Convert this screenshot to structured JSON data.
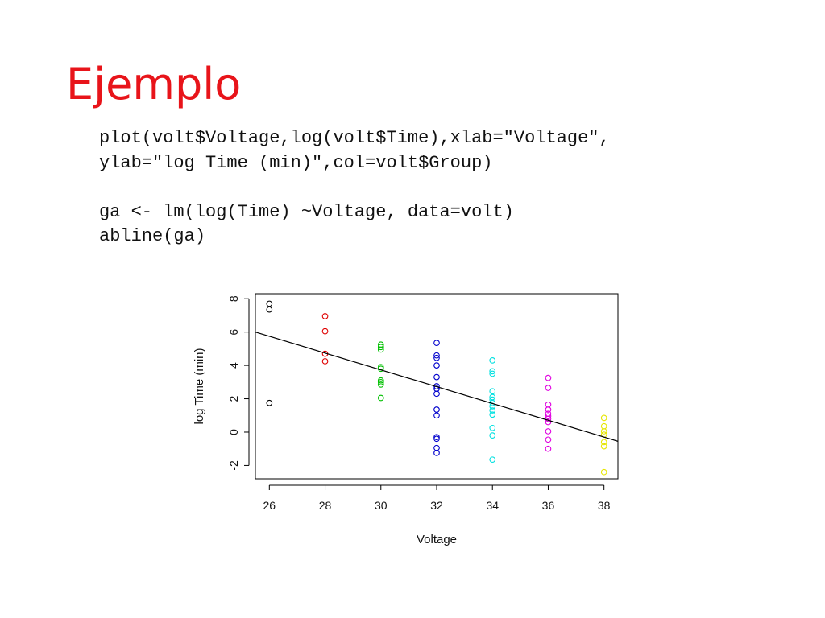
{
  "slide": {
    "title": "Ejemplo",
    "code_lines": [
      "plot(volt$Voltage,log(volt$Time),xlab=\"Voltage\",",
      "ylab=\"log Time (min)\",col=volt$Group)",
      "",
      "ga <- lm(log(Time) ~Voltage, data=volt)",
      "abline(ga)"
    ]
  },
  "chart_data": {
    "type": "scatter",
    "xlabel": "Voltage",
    "ylabel": "log Time (min)",
    "xticks": [
      26,
      28,
      30,
      32,
      34,
      36,
      38
    ],
    "yticks": [
      -2,
      0,
      2,
      4,
      6,
      8
    ],
    "xlim": [
      25.5,
      38.5
    ],
    "ylim": [
      -2.8,
      8.3
    ],
    "grid": false,
    "series": [
      {
        "color": "#000000",
        "points": [
          [
            26,
            7.7
          ],
          [
            26,
            7.35
          ],
          [
            26,
            1.75
          ]
        ]
      },
      {
        "color": "#df0000",
        "points": [
          [
            28,
            6.95
          ],
          [
            28,
            6.05
          ],
          [
            28,
            4.7
          ],
          [
            28,
            4.25
          ]
        ]
      },
      {
        "color": "#00c000",
        "points": [
          [
            30,
            5.25
          ],
          [
            30,
            5.1
          ],
          [
            30,
            4.95
          ],
          [
            30,
            3.9
          ],
          [
            30,
            3.8
          ],
          [
            30,
            3.1
          ],
          [
            30,
            3.0
          ],
          [
            30,
            2.85
          ],
          [
            30,
            2.05
          ]
        ]
      },
      {
        "color": "#0000cc",
        "points": [
          [
            32,
            5.35
          ],
          [
            32,
            4.6
          ],
          [
            32,
            4.45
          ],
          [
            32,
            4.0
          ],
          [
            32,
            3.3
          ],
          [
            32,
            2.75
          ],
          [
            32,
            2.6
          ],
          [
            32,
            2.3
          ],
          [
            32,
            1.35
          ],
          [
            32,
            1.0
          ],
          [
            32,
            -0.3
          ],
          [
            32,
            -0.4
          ],
          [
            32,
            -0.95
          ],
          [
            32,
            -1.25
          ]
        ]
      },
      {
        "color": "#00e0e0",
        "points": [
          [
            34,
            4.3
          ],
          [
            34,
            3.65
          ],
          [
            34,
            3.5
          ],
          [
            34,
            2.45
          ],
          [
            34,
            2.1
          ],
          [
            34,
            1.95
          ],
          [
            34,
            1.75
          ],
          [
            34,
            1.55
          ],
          [
            34,
            1.3
          ],
          [
            34,
            1.05
          ],
          [
            34,
            0.25
          ],
          [
            34,
            -0.2
          ],
          [
            34,
            -1.65
          ]
        ]
      },
      {
        "color": "#e000e0",
        "points": [
          [
            36,
            3.25
          ],
          [
            36,
            2.65
          ],
          [
            36,
            1.65
          ],
          [
            36,
            1.35
          ],
          [
            36,
            1.1
          ],
          [
            36,
            0.95
          ],
          [
            36,
            0.8
          ],
          [
            36,
            0.6
          ],
          [
            36,
            0.05
          ],
          [
            36,
            -0.45
          ],
          [
            36,
            -1.0
          ]
        ]
      },
      {
        "color": "#e6e600",
        "points": [
          [
            38,
            0.85
          ],
          [
            38,
            0.35
          ],
          [
            38,
            0.05
          ],
          [
            38,
            -0.15
          ],
          [
            38,
            -0.6
          ],
          [
            38,
            -0.85
          ],
          [
            38,
            -2.4
          ]
        ]
      }
    ],
    "regression_line": {
      "color": "#000000",
      "points": [
        [
          25.5,
          6.0
        ],
        [
          38.5,
          -0.55
        ]
      ]
    }
  }
}
